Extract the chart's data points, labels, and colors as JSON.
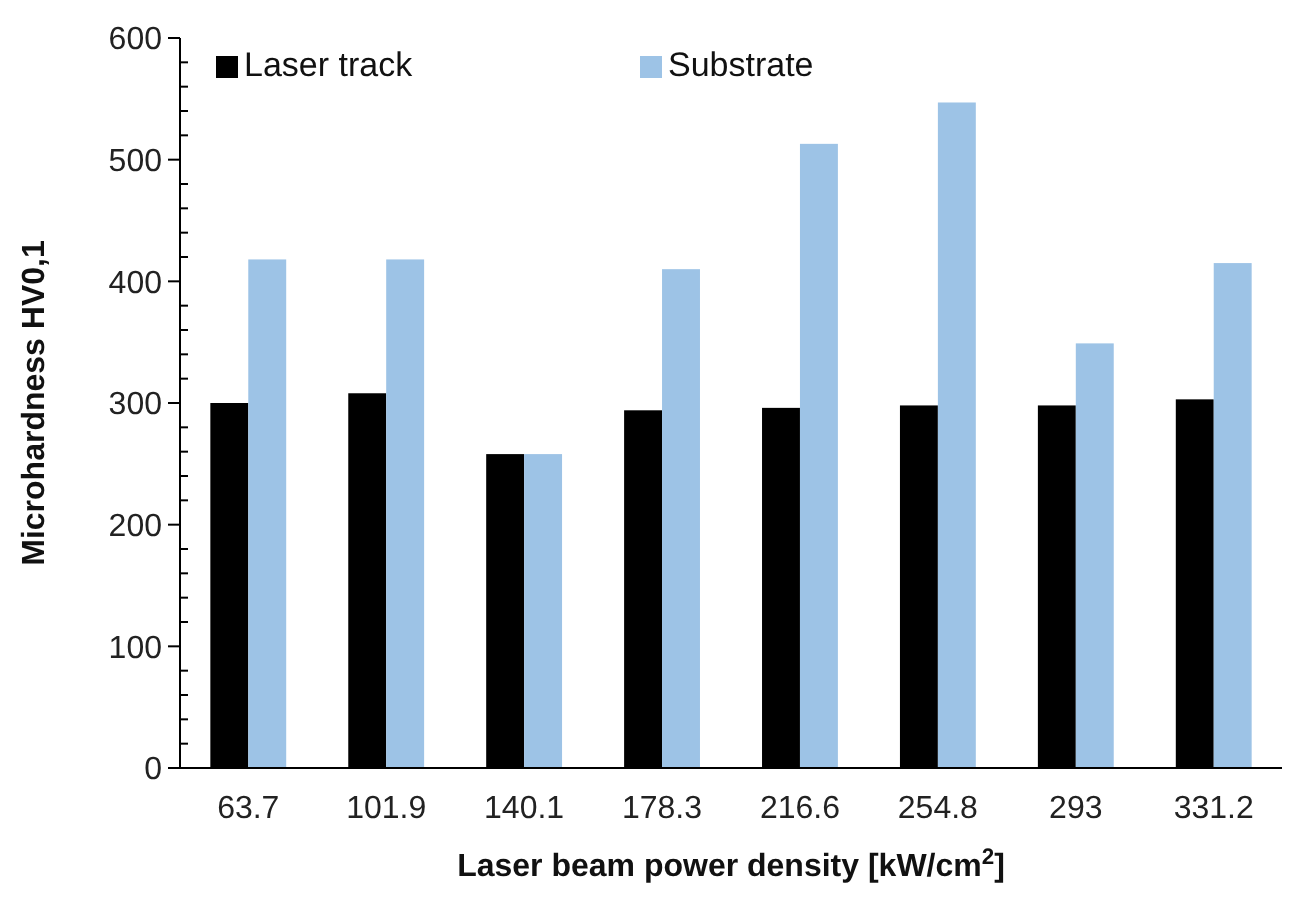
{
  "chart_data": {
    "type": "bar",
    "xlabel": "Laser beam power density [kW/cm$^{2}$]",
    "ylabel": "Microhardness HV0,1",
    "categories": [
      "63.7",
      "101.9",
      "140.1",
      "178.3",
      "216.6",
      "254.8",
      "293",
      "331.2"
    ],
    "series": [
      {
        "name": "Laser track",
        "color": "#000000",
        "values": [
          300,
          308,
          258,
          294,
          296,
          298,
          298,
          303
        ]
      },
      {
        "name": "Substrate",
        "color": "#9dc3e6",
        "values": [
          418,
          418,
          258,
          410,
          513,
          547,
          349,
          415
        ]
      }
    ],
    "ylim": [
      0,
      600
    ],
    "yticks": [
      0,
      {
        "value": 20,
        "label": null
      },
      {
        "value": 40,
        "label": null
      },
      {
        "value": 60,
        "label": null
      },
      {
        "value": 80,
        "label": null
      },
      100,
      {
        "value": 120,
        "label": null
      },
      {
        "value": 140,
        "label": null
      },
      {
        "value": 160,
        "label": null
      },
      {
        "value": 180,
        "label": null
      },
      200,
      {
        "value": 220,
        "label": null
      },
      {
        "value": 240,
        "label": null
      },
      {
        "value": 260,
        "label": null
      },
      {
        "value": 280,
        "label": null
      },
      300,
      {
        "value": 320,
        "label": null
      },
      {
        "value": 340,
        "label": null
      },
      {
        "value": 360,
        "label": null
      },
      {
        "value": 380,
        "label": null
      },
      400,
      {
        "value": 420,
        "label": null
      },
      {
        "value": 440,
        "label": null
      },
      {
        "value": 460,
        "label": null
      },
      {
        "value": 480,
        "label": null
      },
      500,
      {
        "value": 520,
        "label": null
      },
      {
        "value": 540,
        "label": null
      },
      {
        "value": 560,
        "label": null
      },
      {
        "value": 580,
        "label": null
      },
      600
    ],
    "grid": false,
    "legend": "top"
  }
}
